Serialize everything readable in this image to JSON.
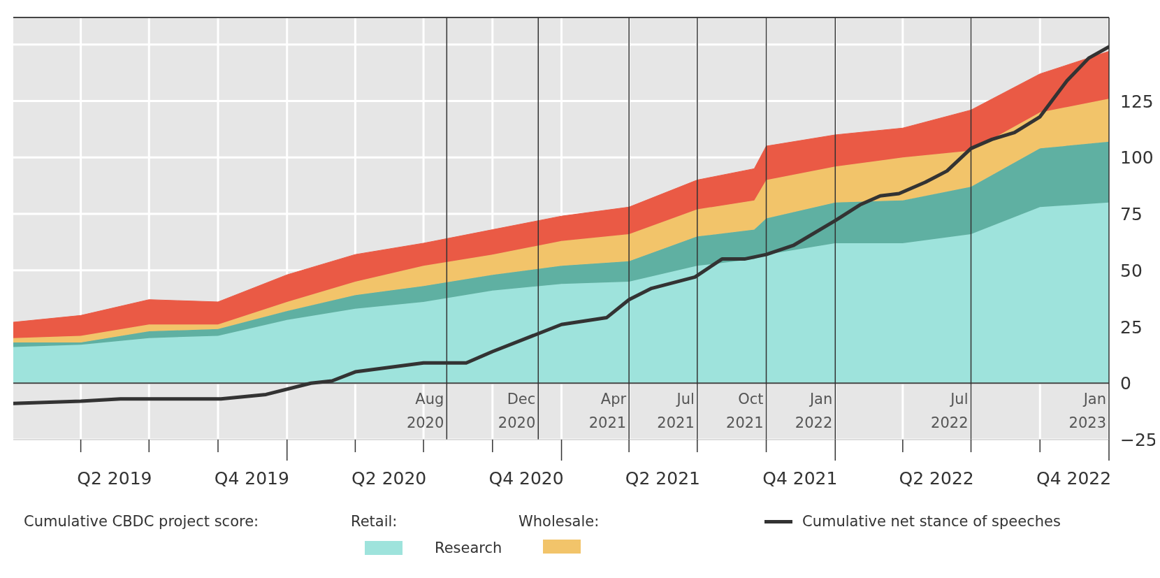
{
  "chart_data": {
    "type": "area",
    "stacked": true,
    "x": [
      "2019-01-01",
      "2019-04-01",
      "2019-07-01",
      "2019-10-01",
      "2020-01-01",
      "2020-04-01",
      "2020-07-01",
      "2020-10-01",
      "2021-01-01",
      "2021-04-01",
      "2021-07-01",
      "2021-09-15",
      "2021-10-01",
      "2022-01-01",
      "2022-04-01",
      "2022-07-01",
      "2022-10-01",
      "2023-01-01"
    ],
    "series": [
      {
        "name": "Research",
        "color": "#9ee3dc",
        "values": [
          16,
          17,
          20,
          21,
          28,
          33,
          36,
          41,
          44,
          45,
          52,
          55,
          57,
          62,
          62,
          66,
          78,
          80
        ]
      },
      {
        "color": "#5fb0a2",
        "values": [
          2,
          1,
          3,
          3,
          4,
          6,
          7,
          7,
          8,
          9,
          13,
          13,
          16,
          18,
          19,
          21,
          26,
          27
        ]
      },
      {
        "color": "#f2c46a",
        "values": [
          2,
          3,
          3,
          2,
          4,
          6,
          9,
          9,
          11,
          12,
          12,
          13,
          17,
          16,
          19,
          16,
          16,
          19
        ]
      },
      {
        "color": "#ea5a45",
        "values": [
          7,
          9,
          11,
          10,
          12,
          12,
          10,
          11,
          11,
          12,
          13,
          14,
          15,
          14,
          13,
          18,
          17,
          21
        ]
      },
      {
        "type": "line",
        "name": "Cumulative net stance of speeches",
        "color": "#333333",
        "x": [
          "2019-01-01",
          "2019-04-01",
          "2019-05-24",
          "2019-10-05",
          "2019-12-04",
          "2020-02-02",
          "2020-03-01",
          "2020-04-01",
          "2020-07-01",
          "2020-08-27",
          "2020-10-01",
          "2021-01-01",
          "2021-03-02",
          "2021-04-01",
          "2021-05-01",
          "2021-06-28",
          "2021-08-03",
          "2021-09-02",
          "2021-10-01",
          "2021-11-06",
          "2022-01-01",
          "2022-02-03",
          "2022-03-02",
          "2022-03-27",
          "2022-05-01",
          "2022-05-30",
          "2022-07-01",
          "2022-07-29",
          "2022-08-28",
          "2022-10-01",
          "2022-11-06",
          "2022-12-05",
          "2023-01-01"
        ],
        "values": [
          -9,
          -8,
          -7,
          -7,
          -5,
          0,
          1,
          5,
          9,
          9,
          14,
          26,
          29,
          37,
          42,
          47,
          55,
          55,
          57,
          61,
          72,
          79,
          83,
          84,
          89,
          94,
          104,
          108,
          111,
          118,
          134,
          144,
          149
        ]
      }
    ],
    "xlim": [
      "2019-01-01",
      "2023-01-01"
    ],
    "xticks": [
      {
        "value": "2019-04-01",
        "label": null
      },
      {
        "value": "2019-05-16",
        "label": "Q2 2019"
      },
      {
        "value": "2019-07-01",
        "label": null
      },
      {
        "value": "2019-10-01",
        "label": null
      },
      {
        "value": "2019-11-15",
        "label": "Q4 2019"
      },
      {
        "value": "2020-01-01",
        "label": null
      },
      {
        "value": "2020-04-01",
        "label": null
      },
      {
        "value": "2020-05-16",
        "label": "Q2 2020"
      },
      {
        "value": "2020-07-01",
        "label": null
      },
      {
        "value": "2020-10-01",
        "label": null
      },
      {
        "value": "2020-11-15",
        "label": "Q4 2020"
      },
      {
        "value": "2021-01-01",
        "label": null
      },
      {
        "value": "2021-04-01",
        "label": null
      },
      {
        "value": "2021-05-16",
        "label": "Q2 2021"
      },
      {
        "value": "2021-07-01",
        "label": null
      },
      {
        "value": "2021-10-01",
        "label": null
      },
      {
        "value": "2021-11-15",
        "label": "Q4 2021"
      },
      {
        "value": "2022-01-01",
        "label": null
      },
      {
        "value": "2022-04-01",
        "label": null
      },
      {
        "value": "2022-05-16",
        "label": "Q2 2022"
      },
      {
        "value": "2022-07-01",
        "label": null
      },
      {
        "value": "2022-10-01",
        "label": null
      },
      {
        "value": "2022-11-15",
        "label": "Q4 2022"
      },
      {
        "value": "2023-01-01",
        "label": null
      }
    ],
    "ylim": [
      -25,
      162
    ],
    "yticks": [
      {
        "value": -25,
        "label": "−25"
      },
      0,
      25,
      50,
      75,
      100,
      125,
      {
        "value": 150,
        "label": null
      }
    ],
    "grid": true,
    "legend": "bottom",
    "marker": "none",
    "line_style": "solid",
    "legend_title": "Cumulative CBDC project score:",
    "annotations": [
      "Retail:",
      "Wholesale:"
    ],
    "ref_lines": [
      {
        "axis": "y",
        "value": 0,
        "color": "#444444"
      },
      {
        "axis": "x",
        "value": "2020-08-01",
        "label": "Aug 2020",
        "color": "#333333"
      },
      {
        "axis": "x",
        "value": "2020-12-01",
        "label": "Dec 2020",
        "color": "#333333"
      },
      {
        "axis": "x",
        "value": "2021-04-01",
        "label": "Apr 2021",
        "color": "#333333"
      },
      {
        "axis": "x",
        "value": "2021-07-01",
        "label": "Jul 2021",
        "color": "#333333"
      },
      {
        "axis": "x",
        "value": "2021-10-01",
        "label": "Oct 2021",
        "color": "#333333"
      },
      {
        "axis": "x",
        "value": "2022-01-01",
        "label": "Jan 2022",
        "color": "#333333"
      },
      {
        "axis": "x",
        "value": "2022-07-01",
        "label": "Jul 2022",
        "color": "#333333"
      },
      {
        "axis": "x",
        "value": "2023-01-01",
        "label": "Jan 2023",
        "color": "#333333"
      }
    ]
  }
}
